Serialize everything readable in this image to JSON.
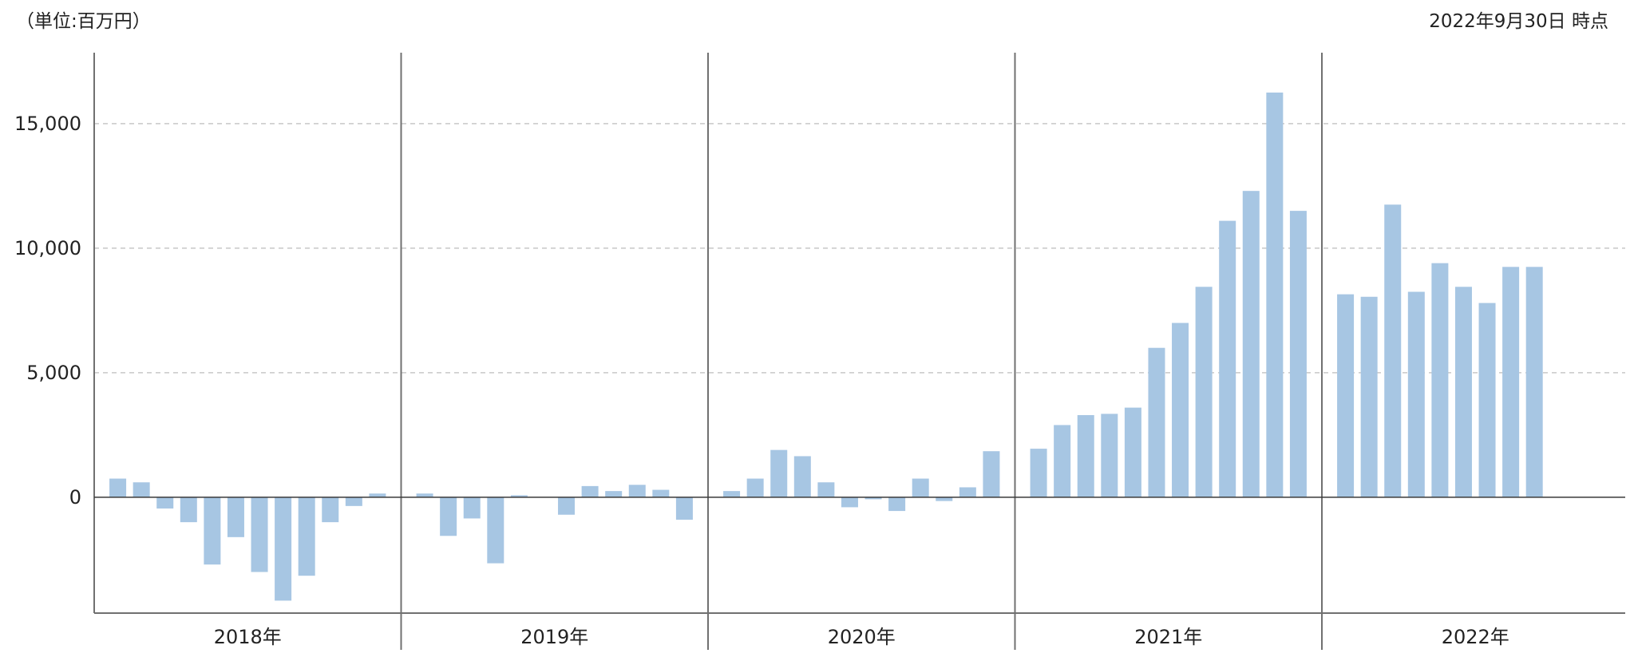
{
  "header": {
    "unit_label": "（単位:百万円）",
    "as_of": "2022年9月30日 時点"
  },
  "colors": {
    "bar": "#a7c6e3",
    "axis": "#707070",
    "grid": "#c8c8c8",
    "zero_line": "#3a3a3a",
    "text": "#222222"
  },
  "chart_data": {
    "type": "bar",
    "groups": [
      {
        "label": "2018年",
        "values": [
          750,
          600,
          -450,
          -1000,
          -2700,
          -1600,
          -3000,
          -4150,
          -3150,
          -1000,
          -350,
          150
        ]
      },
      {
        "label": "2019年",
        "values": [
          150,
          -1550,
          -850,
          -2650,
          80,
          0,
          -700,
          450,
          250,
          500,
          300,
          -900
        ]
      },
      {
        "label": "2020年",
        "values": [
          250,
          750,
          1900,
          1650,
          600,
          -400,
          -80,
          -550,
          750,
          -150,
          400,
          1850
        ]
      },
      {
        "label": "2021年",
        "values": [
          1950,
          2900,
          3300,
          3350,
          3600,
          6000,
          7000,
          8450,
          11100,
          12300,
          16250,
          11500
        ]
      },
      {
        "label": "2022年",
        "values": [
          8150,
          8050,
          11750,
          8250,
          9400,
          8450,
          7800,
          9250,
          9250
        ]
      }
    ],
    "yticks": [
      0,
      5000,
      10000,
      15000
    ],
    "ytick_labels": [
      "0",
      "5,000",
      "10,000",
      "15,000"
    ],
    "ylim": [
      -4650,
      17850
    ],
    "grid": true,
    "legend": "none"
  }
}
